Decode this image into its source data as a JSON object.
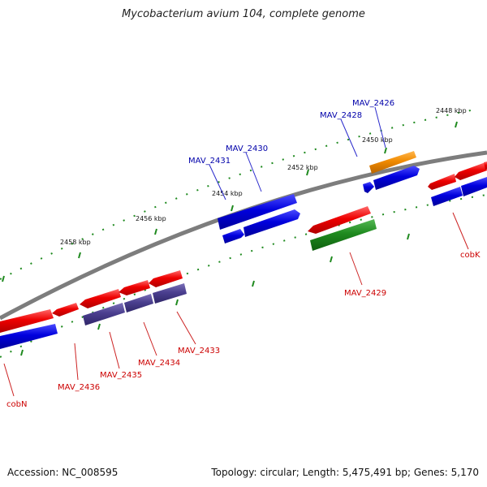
{
  "title": "Mycobacterium avium 104, complete genome",
  "accession_label": "Accession: NC_008595",
  "topology_label": "Topology: circular; Length: 5,475,491 bp; Genes: 5,170",
  "colors": {
    "backbone": "#7d7d7d",
    "gene_red": "#ee0000",
    "gene_blue": "#0000dd",
    "gene_purple": "#4b3f8f",
    "gene_green": "#1f8a1f",
    "gene_orange": "#f08a00",
    "tick": "#1f8a1f",
    "label_red": "#cc0000",
    "label_blue": "#0000aa"
  },
  "tick_labels": [
    "2458 kbp",
    "2456 kbp",
    "2454 kbp",
    "2452 kbp",
    "2450 kbp",
    "2448 kbp"
  ],
  "gene_labels": {
    "mav_2426": "MAV_2426",
    "mav_2428": "MAV_2428",
    "mav_2430": "MAV_2430",
    "mav_2431": "MAV_2431",
    "mav_2429": "MAV_2429",
    "cobk": "cobK",
    "mav_2433": "MAV_2433",
    "mav_2434": "MAV_2434",
    "mav_2435": "MAV_2435",
    "mav_2436": "MAV_2436",
    "cobn": "cobN"
  }
}
